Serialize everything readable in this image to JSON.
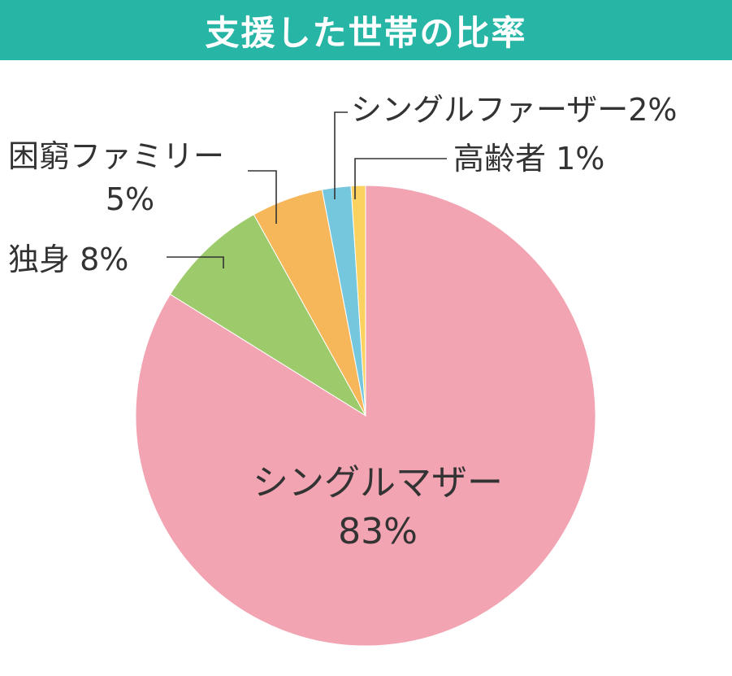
{
  "chart_data": {
    "type": "pie",
    "title": "支援した世帯の比率",
    "categories": [
      "シングルマザー",
      "独身",
      "困窮ファミリー",
      "シングルファーザー",
      "高齢者"
    ],
    "values": [
      83,
      8,
      5,
      2,
      1
    ],
    "unit": "%",
    "colors": [
      "#f2a4b2",
      "#9dcb6b",
      "#f6b75a",
      "#74c7dd",
      "#fbd260"
    ],
    "labels": [
      {
        "name": "シングルマザー",
        "value": "83%"
      },
      {
        "name": "独身",
        "value": "8%"
      },
      {
        "name": "困窮ファミリー",
        "value": "5%"
      },
      {
        "name": "シングルファーザー",
        "value": "2%"
      },
      {
        "name": "高齢者",
        "value": "1%"
      }
    ]
  }
}
